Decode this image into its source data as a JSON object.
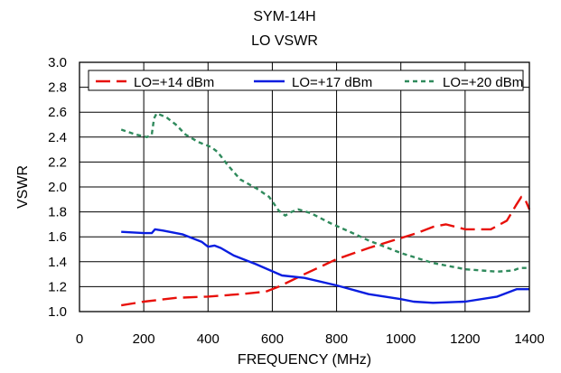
{
  "chart_data": {
    "type": "line",
    "title": "SYM-14H",
    "subtitle": "LO VSWR",
    "xlabel": "FREQUENCY (MHz)",
    "ylabel": "VSWR",
    "xlim": [
      0,
      1400
    ],
    "ylim": [
      1.0,
      3.0
    ],
    "x_ticks": [
      "0",
      "200",
      "400",
      "600",
      "800",
      "1000",
      "1200",
      "1400"
    ],
    "y_ticks": [
      "1.0",
      "1.2",
      "1.4",
      "1.6",
      "1.8",
      "2.0",
      "2.2",
      "2.4",
      "2.6",
      "2.8",
      "3.0"
    ],
    "grid": true,
    "legend_position": "top",
    "series": [
      {
        "name": "LO=+14 dBm",
        "color": "#e8100a",
        "dash": "dashed",
        "points": [
          [
            130,
            1.05
          ],
          [
            200,
            1.08
          ],
          [
            300,
            1.11
          ],
          [
            400,
            1.12
          ],
          [
            500,
            1.14
          ],
          [
            580,
            1.16
          ],
          [
            620,
            1.2
          ],
          [
            700,
            1.3
          ],
          [
            800,
            1.42
          ],
          [
            900,
            1.51
          ],
          [
            1000,
            1.59
          ],
          [
            1050,
            1.63
          ],
          [
            1100,
            1.68
          ],
          [
            1140,
            1.7
          ],
          [
            1200,
            1.66
          ],
          [
            1280,
            1.66
          ],
          [
            1330,
            1.73
          ],
          [
            1360,
            1.86
          ],
          [
            1375,
            1.92
          ],
          [
            1385,
            1.91
          ],
          [
            1400,
            1.82
          ]
        ]
      },
      {
        "name": "LO=+17 dBm",
        "color": "#0a1ee0",
        "dash": "solid",
        "points": [
          [
            130,
            1.64
          ],
          [
            200,
            1.63
          ],
          [
            225,
            1.63
          ],
          [
            235,
            1.66
          ],
          [
            260,
            1.65
          ],
          [
            320,
            1.62
          ],
          [
            380,
            1.56
          ],
          [
            400,
            1.52
          ],
          [
            420,
            1.53
          ],
          [
            440,
            1.51
          ],
          [
            480,
            1.45
          ],
          [
            550,
            1.38
          ],
          [
            630,
            1.29
          ],
          [
            700,
            1.27
          ],
          [
            800,
            1.21
          ],
          [
            900,
            1.14
          ],
          [
            1000,
            1.1
          ],
          [
            1040,
            1.08
          ],
          [
            1100,
            1.07
          ],
          [
            1200,
            1.08
          ],
          [
            1300,
            1.12
          ],
          [
            1360,
            1.18
          ],
          [
            1400,
            1.18
          ]
        ]
      },
      {
        "name": "LO=+20 dBm",
        "color": "#2f8a5c",
        "dash": "dotted",
        "points": [
          [
            130,
            2.46
          ],
          [
            175,
            2.42
          ],
          [
            210,
            2.4
          ],
          [
            225,
            2.42
          ],
          [
            232,
            2.55
          ],
          [
            240,
            2.59
          ],
          [
            270,
            2.56
          ],
          [
            300,
            2.5
          ],
          [
            330,
            2.42
          ],
          [
            370,
            2.36
          ],
          [
            410,
            2.32
          ],
          [
            430,
            2.28
          ],
          [
            460,
            2.18
          ],
          [
            500,
            2.06
          ],
          [
            550,
            1.99
          ],
          [
            590,
            1.92
          ],
          [
            620,
            1.81
          ],
          [
            640,
            1.77
          ],
          [
            660,
            1.8
          ],
          [
            680,
            1.82
          ],
          [
            720,
            1.79
          ],
          [
            780,
            1.71
          ],
          [
            850,
            1.63
          ],
          [
            900,
            1.57
          ],
          [
            950,
            1.52
          ],
          [
            1000,
            1.47
          ],
          [
            1050,
            1.43
          ],
          [
            1100,
            1.39
          ],
          [
            1200,
            1.34
          ],
          [
            1300,
            1.32
          ],
          [
            1350,
            1.33
          ],
          [
            1370,
            1.35
          ],
          [
            1400,
            1.35
          ]
        ]
      }
    ]
  }
}
